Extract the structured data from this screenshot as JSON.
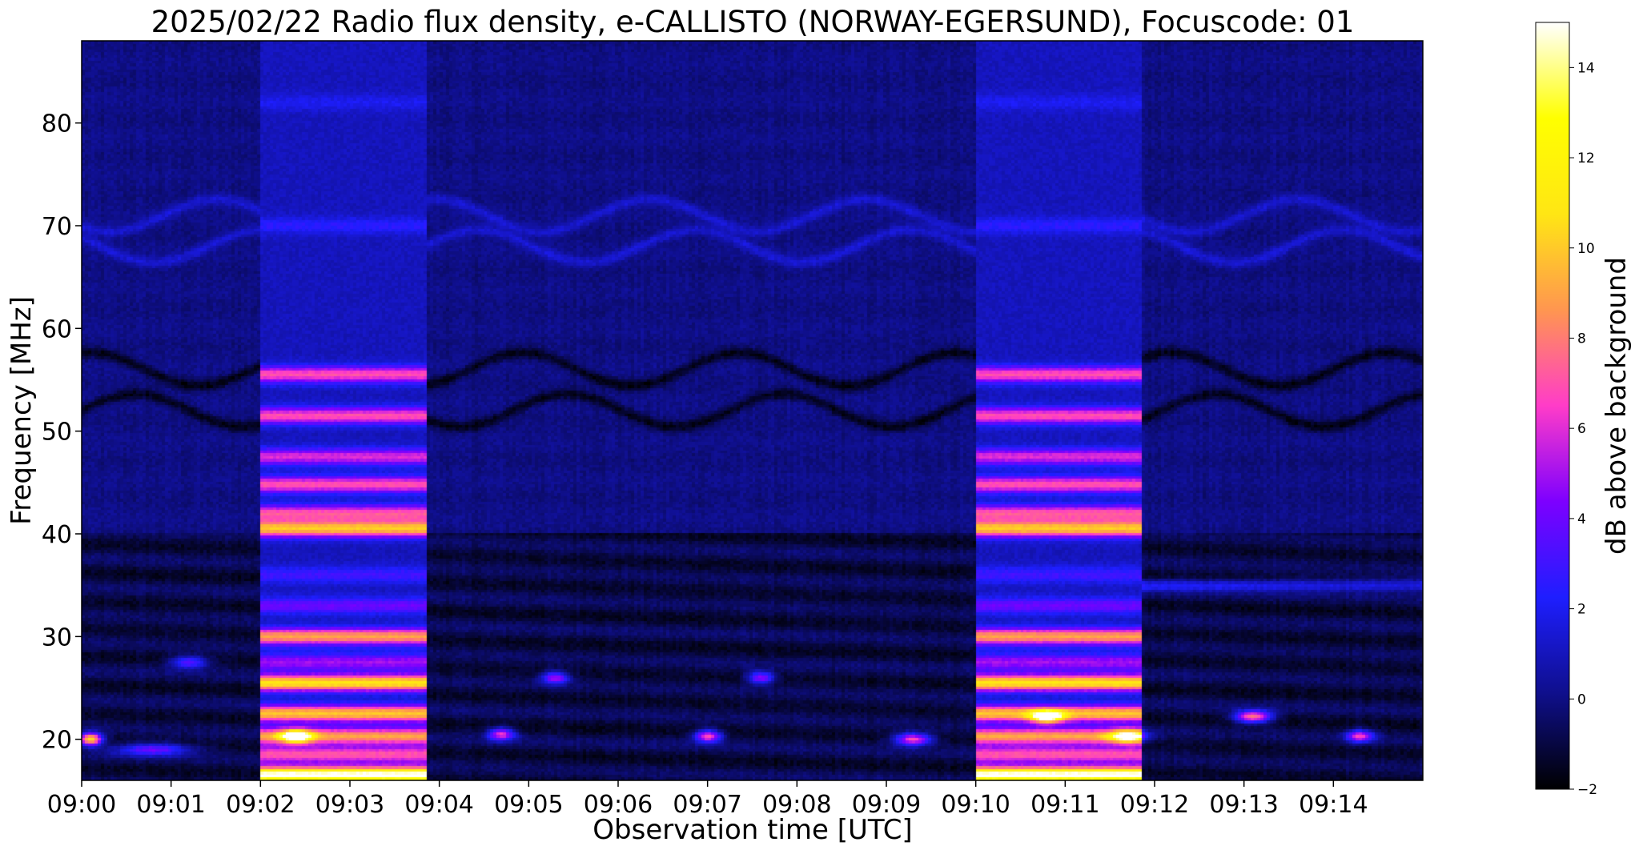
{
  "chart_data": {
    "type": "heatmap",
    "title": "2025/02/22  Radio flux density, e-CALLISTO (NORWAY-EGERSUND), Focuscode: 01",
    "xlabel": "Observation time [UTC]",
    "ylabel": "Frequency [MHz]",
    "colorbar_label": "dB above background",
    "x_range_minutes": [
      0,
      15
    ],
    "y_range_mhz": [
      16,
      88
    ],
    "color_range_db": [
      -2,
      15
    ],
    "colormap": [
      "#000000",
      "#0f0f8c",
      "#1e1eff",
      "#7d00ff",
      "#ff3cc8",
      "#ff9650",
      "#ffe614",
      "#ffff00",
      "#ffffff"
    ],
    "x_ticks": [
      {
        "value": 0,
        "label": "09:00"
      },
      {
        "value": 1,
        "label": "09:01"
      },
      {
        "value": 2,
        "label": "09:02"
      },
      {
        "value": 3,
        "label": "09:03"
      },
      {
        "value": 4,
        "label": "09:04"
      },
      {
        "value": 5,
        "label": "09:05"
      },
      {
        "value": 6,
        "label": "09:06"
      },
      {
        "value": 7,
        "label": "09:07"
      },
      {
        "value": 8,
        "label": "09:08"
      },
      {
        "value": 9,
        "label": "09:09"
      },
      {
        "value": 10,
        "label": "09:10"
      },
      {
        "value": 11,
        "label": "09:11"
      },
      {
        "value": 12,
        "label": "09:12"
      },
      {
        "value": 13,
        "label": "09:13"
      },
      {
        "value": 14,
        "label": "09:14"
      }
    ],
    "y_ticks": [
      {
        "value": 20,
        "label": "20"
      },
      {
        "value": 30,
        "label": "30"
      },
      {
        "value": 40,
        "label": "40"
      },
      {
        "value": 50,
        "label": "50"
      },
      {
        "value": 60,
        "label": "60"
      },
      {
        "value": 70,
        "label": "70"
      },
      {
        "value": 80,
        "label": "80"
      }
    ],
    "colorbar_ticks": [
      {
        "value": -2,
        "label": "−2"
      },
      {
        "value": 0,
        "label": "0"
      },
      {
        "value": 2,
        "label": "2"
      },
      {
        "value": 4,
        "label": "4"
      },
      {
        "value": 6,
        "label": "6"
      },
      {
        "value": 8,
        "label": "8"
      },
      {
        "value": 10,
        "label": "10"
      },
      {
        "value": 12,
        "label": "12"
      },
      {
        "value": 14,
        "label": "14"
      }
    ],
    "background_level_db": 0,
    "calibration_blocks": [
      {
        "t_start": 2.0,
        "t_end": 3.85
      },
      {
        "t_start": 10.0,
        "t_end": 11.85
      }
    ],
    "calibration_bands_mhz": [
      {
        "freq": 16.5,
        "db": 14.5
      },
      {
        "freq": 18.5,
        "db": 6
      },
      {
        "freq": 20.3,
        "db": 8
      },
      {
        "freq": 22.5,
        "db": 9
      },
      {
        "freq": 25.5,
        "db": 10
      },
      {
        "freq": 27.5,
        "db": 4
      },
      {
        "freq": 30.0,
        "db": 8
      },
      {
        "freq": 33.0,
        "db": 3
      },
      {
        "freq": 36.0,
        "db": 2
      },
      {
        "freq": 40.5,
        "db": 9
      },
      {
        "freq": 42.0,
        "db": 6
      },
      {
        "freq": 44.8,
        "db": 6
      },
      {
        "freq": 47.5,
        "db": 5
      },
      {
        "freq": 51.5,
        "db": 6
      },
      {
        "freq": 55.5,
        "db": 6
      },
      {
        "freq": 70.0,
        "db": 1.5
      },
      {
        "freq": 82.0,
        "db": 1
      }
    ],
    "bursts": [
      {
        "t": 0.1,
        "freq": 20.0,
        "db": 12,
        "width_min": 0.25
      },
      {
        "t": 0.8,
        "freq": 19.0,
        "db": 5,
        "width_min": 0.8
      },
      {
        "t": 1.2,
        "freq": 27.5,
        "db": 5,
        "width_min": 0.4
      },
      {
        "t": 2.4,
        "freq": 20.3,
        "db": 11,
        "width_min": 0.35
      },
      {
        "t": 4.7,
        "freq": 20.5,
        "db": 7,
        "width_min": 0.3
      },
      {
        "t": 5.3,
        "freq": 26.0,
        "db": 6,
        "width_min": 0.3
      },
      {
        "t": 7.0,
        "freq": 20.3,
        "db": 8,
        "width_min": 0.3
      },
      {
        "t": 7.6,
        "freq": 26.0,
        "db": 6,
        "width_min": 0.3
      },
      {
        "t": 9.3,
        "freq": 20.0,
        "db": 8,
        "width_min": 0.4
      },
      {
        "t": 10.8,
        "freq": 22.2,
        "db": 11,
        "width_min": 0.35
      },
      {
        "t": 11.7,
        "freq": 20.3,
        "db": 9,
        "width_min": 0.4
      },
      {
        "t": 13.1,
        "freq": 22.2,
        "db": 9,
        "width_min": 0.4
      },
      {
        "t": 14.3,
        "freq": 20.3,
        "db": 7,
        "width_min": 0.3
      }
    ],
    "interference_bands_mhz": [
      {
        "t_start": 11.85,
        "t_end": 15.0,
        "freq": 35.0,
        "db": 3
      }
    ],
    "wavy_band_centers_mhz": [
      52,
      56,
      68,
      71
    ],
    "grid": false
  }
}
